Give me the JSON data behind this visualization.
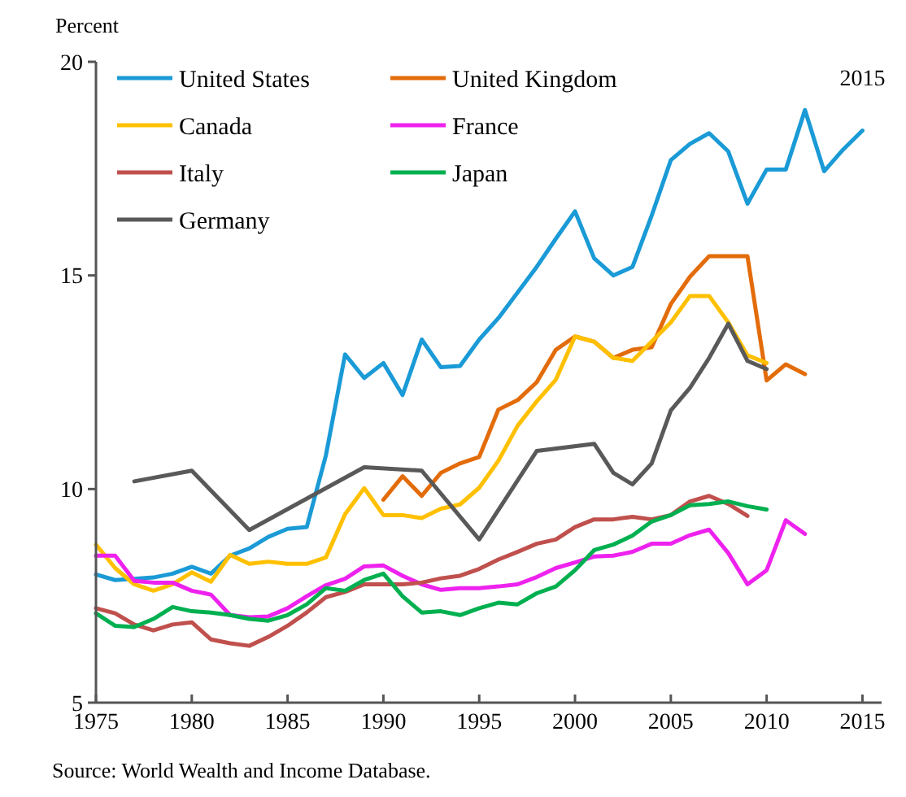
{
  "chart_data": {
    "type": "line",
    "ylabel": "Percent",
    "xlim": [
      1975,
      2016
    ],
    "xticks": [
      1975,
      1980,
      1985,
      1990,
      1995,
      2000,
      2005,
      2010,
      2015
    ],
    "ylim": [
      5,
      20
    ],
    "yticks": [
      5,
      10,
      15,
      20
    ],
    "grid": false,
    "legend": "top left",
    "marker": "none",
    "line_style": "solid",
    "annotations": [
      {
        "text": "2015",
        "x": 2015,
        "y": 18.39
      },
      "Source: World Wealth and Income Database."
    ],
    "series": [
      {
        "name": "United States",
        "color": "#1a9ad6",
        "x": [
          1975,
          1976,
          1977,
          1978,
          1979,
          1980,
          1981,
          1982,
          1983,
          1984,
          1985,
          1986,
          1987,
          1988,
          1989,
          1990,
          1991,
          1992,
          1993,
          1994,
          1995,
          1996,
          1997,
          1998,
          1999,
          2000,
          2001,
          2002,
          2003,
          2004,
          2005,
          2006,
          2007,
          2008,
          2009,
          2010,
          2011,
          2012,
          2013,
          2014,
          2015
        ],
        "values": [
          8.0,
          7.87,
          7.9,
          7.93,
          8.02,
          8.18,
          8.02,
          8.44,
          8.61,
          8.88,
          9.07,
          9.11,
          10.79,
          13.15,
          12.6,
          12.95,
          12.2,
          13.5,
          12.85,
          12.88,
          13.5,
          14.0,
          14.6,
          15.2,
          15.86,
          16.5,
          15.4,
          15.0,
          15.2,
          16.4,
          17.7,
          18.08,
          18.33,
          17.9,
          16.68,
          17.48,
          17.48,
          18.87,
          17.44,
          17.95,
          18.39
        ]
      },
      {
        "name": "United Kingdom",
        "color": "#e36c0a",
        "x": [
          1990,
          1991,
          1992,
          1993,
          1994,
          1995,
          1996,
          1997,
          1998,
          1999,
          2000,
          2001,
          2002,
          2003,
          2004,
          2005,
          2006,
          2007,
          2008,
          2009,
          2010,
          2011,
          2012
        ],
        "values": [
          9.75,
          10.3,
          9.84,
          10.38,
          10.6,
          10.75,
          11.86,
          12.08,
          12.5,
          13.26,
          13.57,
          13.45,
          13.07,
          13.26,
          13.32,
          14.33,
          14.97,
          15.45,
          15.45,
          15.45,
          12.54,
          12.92,
          12.69
        ]
      },
      {
        "name": "Canada",
        "color": "#ffc000",
        "x": [
          1975,
          1976,
          1977,
          1978,
          1979,
          1980,
          1981,
          1982,
          1983,
          1984,
          1985,
          1986,
          1987,
          1988,
          1989,
          1990,
          1991,
          1992,
          1993,
          1994,
          1995,
          1996,
          1997,
          1998,
          1999,
          2000,
          2001,
          2002,
          2003,
          2004,
          2005,
          2006,
          2007,
          2008,
          2009,
          2010
        ],
        "values": [
          8.7,
          8.15,
          7.77,
          7.62,
          7.77,
          8.05,
          7.83,
          8.46,
          8.25,
          8.3,
          8.25,
          8.25,
          8.4,
          9.41,
          10.02,
          9.39,
          9.39,
          9.32,
          9.54,
          9.64,
          10.03,
          10.66,
          11.48,
          12.05,
          12.56,
          13.57,
          13.45,
          13.07,
          13.0,
          13.45,
          13.9,
          14.52,
          14.52,
          13.9,
          13.13,
          12.95
        ]
      },
      {
        "name": "France",
        "color": "#ee22ee",
        "x": [
          1975,
          1976,
          1977,
          1978,
          1979,
          1980,
          1981,
          1982,
          1983,
          1984,
          1985,
          1986,
          1987,
          1988,
          1989,
          1990,
          1991,
          1992,
          1993,
          1994,
          1995,
          1996,
          1997,
          1998,
          1999,
          2000,
          2001,
          2002,
          2003,
          2004,
          2005,
          2006,
          2007,
          2008,
          2009,
          2010,
          2011,
          2012
        ],
        "values": [
          8.44,
          8.44,
          7.85,
          7.81,
          7.81,
          7.62,
          7.53,
          7.05,
          7.0,
          7.02,
          7.21,
          7.49,
          7.75,
          7.9,
          8.19,
          8.21,
          7.97,
          7.77,
          7.64,
          7.68,
          7.68,
          7.72,
          7.77,
          7.94,
          8.15,
          8.28,
          8.42,
          8.44,
          8.53,
          8.72,
          8.72,
          8.92,
          9.05,
          8.5,
          7.77,
          8.1,
          9.27,
          8.95
        ]
      },
      {
        "name": "Italy",
        "color": "#c0504d",
        "x": [
          1975,
          1976,
          1977,
          1978,
          1979,
          1980,
          1981,
          1982,
          1983,
          1984,
          1985,
          1986,
          1987,
          1988,
          1989,
          1990,
          1991,
          1992,
          1993,
          1994,
          1995,
          1996,
          1997,
          1998,
          1999,
          2000,
          2001,
          2002,
          2003,
          2004,
          2005,
          2006,
          2007,
          2008,
          2009
        ],
        "values": [
          7.21,
          7.09,
          6.83,
          6.69,
          6.83,
          6.88,
          6.48,
          6.39,
          6.33,
          6.54,
          6.8,
          7.11,
          7.47,
          7.59,
          7.77,
          7.77,
          7.77,
          7.81,
          7.91,
          7.97,
          8.13,
          8.35,
          8.53,
          8.72,
          8.82,
          9.11,
          9.29,
          9.29,
          9.35,
          9.29,
          9.39,
          9.71,
          9.84,
          9.65,
          9.37
        ]
      },
      {
        "name": "Japan",
        "color": "#00b050",
        "x": [
          1975,
          1976,
          1977,
          1978,
          1979,
          1980,
          1981,
          1982,
          1983,
          1984,
          1985,
          1986,
          1987,
          1988,
          1989,
          1990,
          1991,
          1992,
          1993,
          1994,
          1995,
          1996,
          1997,
          1998,
          1999,
          2000,
          2001,
          2002,
          2003,
          2004,
          2005,
          2006,
          2007,
          2008,
          2009,
          2010
        ],
        "values": [
          7.09,
          6.8,
          6.77,
          6.96,
          7.24,
          7.14,
          7.11,
          7.05,
          6.96,
          6.92,
          7.05,
          7.3,
          7.68,
          7.62,
          7.87,
          8.02,
          7.49,
          7.11,
          7.14,
          7.05,
          7.21,
          7.34,
          7.3,
          7.56,
          7.72,
          8.1,
          8.57,
          8.7,
          8.91,
          9.24,
          9.39,
          9.62,
          9.65,
          9.71,
          9.6,
          9.52
        ]
      },
      {
        "name": "Germany",
        "color": "#595959",
        "x": [
          1977,
          1980,
          1983,
          1989,
          1992,
          1995,
          1998,
          2001,
          2002,
          2003,
          2004,
          2005,
          2006,
          2007,
          2008,
          2009,
          2010
        ],
        "values": [
          10.18,
          10.43,
          9.04,
          10.51,
          10.43,
          8.82,
          10.89,
          11.06,
          10.38,
          10.11,
          10.6,
          11.84,
          12.37,
          13.07,
          13.87,
          13.0,
          12.81
        ]
      }
    ]
  }
}
